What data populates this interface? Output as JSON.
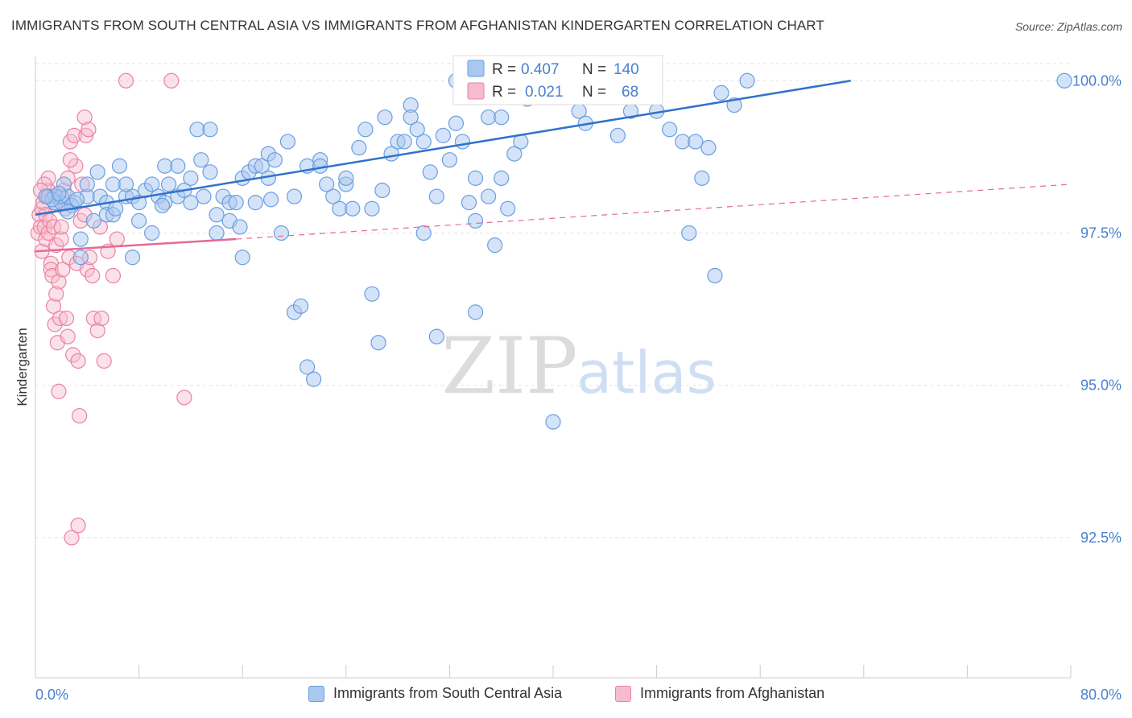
{
  "title": "IMMIGRANTS FROM SOUTH CENTRAL ASIA VS IMMIGRANTS FROM AFGHANISTAN KINDERGARTEN CORRELATION CHART",
  "source": "Source: ZipAtlas.com",
  "watermark": {
    "zip": "ZIP",
    "atlas": "atlas"
  },
  "colors": {
    "blue_fill": "#a9c8f0",
    "blue_stroke": "#6a9ee0",
    "blue_line": "#2f72cc",
    "pink_fill": "#f6bccd",
    "pink_stroke": "#eb82a4",
    "pink_line": "#e8679a",
    "axis_text": "#4a7fd0",
    "grid": "#e2e2e2"
  },
  "chart_data": {
    "type": "scatter",
    "xlabel": "",
    "ylabel": "Kindergarten",
    "xlim": [
      0,
      80
    ],
    "ylim": [
      90.2,
      100.4
    ],
    "x_tick_labels": [
      "0.0%",
      "80.0%"
    ],
    "y_ticks": [
      92.5,
      95.0,
      97.5,
      100.0
    ],
    "y_tick_labels": [
      "92.5%",
      "95.0%",
      "97.5%",
      "100.0%"
    ],
    "grid": "horizontal dashed",
    "legend_position": "top-center",
    "legend": [
      {
        "r_label": "R =",
        "r_value": "0.407",
        "n_label": "N =",
        "n_value": "140"
      },
      {
        "r_label": "R =",
        "r_value": "0.021",
        "n_label": "N =",
        "n_value": "68"
      }
    ],
    "series": [
      {
        "name": "Immigrants from South Central Asia",
        "color": "#a9c8f0",
        "trend": {
          "x0": 0,
          "y0": 97.8,
          "x1": 63,
          "y1": 100.0,
          "style": "solid"
        },
        "points": [
          [
            1,
            98.1
          ],
          [
            1.5,
            98.1
          ],
          [
            1.5,
            98.0
          ],
          [
            2,
            98.0
          ],
          [
            2,
            98.1
          ],
          [
            2.5,
            98.1
          ],
          [
            3,
            98.0
          ],
          [
            2.2,
            98.3
          ],
          [
            3.5,
            97.4
          ],
          [
            4,
            98.1
          ],
          [
            3.5,
            97.1
          ],
          [
            4,
            98.3
          ],
          [
            4.5,
            97.7
          ],
          [
            5,
            98.1
          ],
          [
            5.5,
            98.0
          ],
          [
            4.8,
            98.5
          ],
          [
            5.5,
            97.8
          ],
          [
            6,
            97.8
          ],
          [
            6,
            98.3
          ],
          [
            6.5,
            98.6
          ],
          [
            7,
            98.1
          ],
          [
            7.5,
            98.1
          ],
          [
            8,
            98.0
          ],
          [
            8,
            97.7
          ],
          [
            7.5,
            97.1
          ],
          [
            8.5,
            98.2
          ],
          [
            9,
            97.5
          ],
          [
            9,
            98.3
          ],
          [
            9.5,
            98.1
          ],
          [
            10,
            98.6
          ],
          [
            10,
            98.0
          ],
          [
            10.3,
            98.3
          ],
          [
            11,
            98.1
          ],
          [
            11.5,
            98.2
          ],
          [
            11,
            98.6
          ],
          [
            12,
            98.0
          ],
          [
            12,
            98.4
          ],
          [
            12.5,
            99.2
          ],
          [
            13,
            98.1
          ],
          [
            13.5,
            99.2
          ],
          [
            13.5,
            98.5
          ],
          [
            14,
            97.8
          ],
          [
            14,
            97.5
          ],
          [
            14.5,
            98.1
          ],
          [
            15,
            97.7
          ],
          [
            15,
            98.0
          ],
          [
            15.5,
            98.0
          ],
          [
            16,
            98.4
          ],
          [
            16,
            97.1
          ],
          [
            16.5,
            98.5
          ],
          [
            17,
            98.0
          ],
          [
            17,
            98.6
          ],
          [
            17.5,
            98.6
          ],
          [
            18,
            98.4
          ],
          [
            18,
            98.8
          ],
          [
            18.5,
            98.7
          ],
          [
            19,
            97.5
          ],
          [
            19.5,
            99.0
          ],
          [
            20,
            98.1
          ],
          [
            20,
            96.2
          ],
          [
            20.5,
            96.3
          ],
          [
            21,
            98.6
          ],
          [
            21,
            95.3
          ],
          [
            21.5,
            95.1
          ],
          [
            22,
            98.7
          ],
          [
            22,
            98.6
          ],
          [
            23,
            98.1
          ],
          [
            23.5,
            97.9
          ],
          [
            24,
            98.3
          ],
          [
            24,
            98.4
          ],
          [
            24.5,
            97.9
          ],
          [
            25,
            98.9
          ],
          [
            25.5,
            99.2
          ],
          [
            26,
            96.5
          ],
          [
            26,
            97.9
          ],
          [
            26.5,
            95.7
          ],
          [
            27,
            99.4
          ],
          [
            27.5,
            98.8
          ],
          [
            28,
            99.0
          ],
          [
            28.5,
            99.0
          ],
          [
            29,
            99.6
          ],
          [
            29,
            99.4
          ],
          [
            29.5,
            99.2
          ],
          [
            30,
            99.0
          ],
          [
            30,
            97.5
          ],
          [
            30.5,
            98.5
          ],
          [
            31,
            98.1
          ],
          [
            31.5,
            99.1
          ],
          [
            31,
            95.8
          ],
          [
            32,
            98.7
          ],
          [
            32.5,
            99.3
          ],
          [
            32.5,
            100.0
          ],
          [
            33,
            99.0
          ],
          [
            33.5,
            98.0
          ],
          [
            34,
            96.2
          ],
          [
            34,
            97.7
          ],
          [
            34,
            98.4
          ],
          [
            35,
            99.4
          ],
          [
            35,
            98.1
          ],
          [
            35.5,
            97.3
          ],
          [
            36,
            99.4
          ],
          [
            36,
            98.4
          ],
          [
            37,
            98.8
          ],
          [
            37.5,
            99.0
          ],
          [
            38,
            99.7
          ],
          [
            38.5,
            100.0
          ],
          [
            39,
            99.8
          ],
          [
            40,
            94.4
          ],
          [
            40.5,
            100.0
          ],
          [
            41,
            100.0
          ],
          [
            42,
            99.5
          ],
          [
            42.5,
            99.3
          ],
          [
            43,
            100.0
          ],
          [
            44,
            100.0
          ],
          [
            45,
            99.1
          ],
          [
            46,
            99.5
          ],
          [
            47,
            100.0
          ],
          [
            48,
            99.5
          ],
          [
            49,
            99.2
          ],
          [
            50,
            99.0
          ],
          [
            50.5,
            97.5
          ],
          [
            51,
            99.0
          ],
          [
            51.5,
            98.4
          ],
          [
            52,
            98.9
          ],
          [
            52.5,
            96.8
          ],
          [
            53,
            99.8
          ],
          [
            54,
            99.6
          ],
          [
            55,
            100.0
          ],
          [
            79.5,
            100.0
          ],
          [
            1.3,
            98.05
          ],
          [
            2.8,
            97.95
          ],
          [
            1.8,
            98.15
          ],
          [
            3.2,
            98.05
          ],
          [
            2.5,
            97.85
          ],
          [
            0.8,
            98.1
          ],
          [
            6.2,
            97.9
          ],
          [
            7,
            98.3
          ],
          [
            9.8,
            97.95
          ],
          [
            12.8,
            98.7
          ],
          [
            15.8,
            97.6
          ],
          [
            18.2,
            98.05
          ],
          [
            22.5,
            98.3
          ],
          [
            26.8,
            98.2
          ],
          [
            36.5,
            97.9
          ]
        ]
      },
      {
        "name": "Immigrants from Afghanistan",
        "color": "#f6bccd",
        "trend": {
          "x0": 0,
          "y0": 97.2,
          "x1": 15.5,
          "y1": 97.4,
          "style": "solid"
        },
        "trend_extension": {
          "x0": 15.5,
          "y0": 97.4,
          "x1": 80,
          "y1": 98.3,
          "style": "dashed"
        },
        "points": [
          [
            0.2,
            97.5
          ],
          [
            0.3,
            97.8
          ],
          [
            0.4,
            97.6
          ],
          [
            0.5,
            97.2
          ],
          [
            0.5,
            97.9
          ],
          [
            0.6,
            98.0
          ],
          [
            0.7,
            97.6
          ],
          [
            0.8,
            97.4
          ],
          [
            0.8,
            97.8
          ],
          [
            0.9,
            98.1
          ],
          [
            1,
            97.5
          ],
          [
            1,
            98.2
          ],
          [
            1.1,
            97.7
          ],
          [
            1.2,
            97.0
          ],
          [
            1.2,
            96.9
          ],
          [
            1.3,
            96.8
          ],
          [
            1.4,
            96.3
          ],
          [
            1.4,
            97.6
          ],
          [
            1.5,
            96.0
          ],
          [
            1.5,
            98.0
          ],
          [
            1.6,
            97.3
          ],
          [
            1.7,
            95.7
          ],
          [
            1.8,
            94.9
          ],
          [
            1.8,
            96.7
          ],
          [
            1.9,
            96.1
          ],
          [
            2,
            97.4
          ],
          [
            2.1,
            96.9
          ],
          [
            2.2,
            98.2
          ],
          [
            2.3,
            97.9
          ],
          [
            2.4,
            96.1
          ],
          [
            2.5,
            95.8
          ],
          [
            2.5,
            98.4
          ],
          [
            2.6,
            97.1
          ],
          [
            2.7,
            99.0
          ],
          [
            2.8,
            92.5
          ],
          [
            2.9,
            95.5
          ],
          [
            3,
            99.1
          ],
          [
            3.1,
            98.6
          ],
          [
            3.2,
            97.0
          ],
          [
            3.3,
            95.4
          ],
          [
            3.3,
            92.7
          ],
          [
            3.4,
            94.5
          ],
          [
            3.5,
            97.7
          ],
          [
            3.6,
            98.3
          ],
          [
            3.8,
            99.4
          ],
          [
            3.9,
            99.1
          ],
          [
            4,
            96.9
          ],
          [
            4.1,
            99.2
          ],
          [
            4.2,
            97.1
          ],
          [
            4.4,
            96.8
          ],
          [
            4.5,
            96.1
          ],
          [
            4.8,
            95.9
          ],
          [
            5,
            97.6
          ],
          [
            5.1,
            96.1
          ],
          [
            5.3,
            95.4
          ],
          [
            5.6,
            97.2
          ],
          [
            6,
            96.8
          ],
          [
            6.3,
            97.4
          ],
          [
            7,
            100.0
          ],
          [
            10.5,
            100.0
          ],
          [
            11.5,
            94.8
          ],
          [
            2,
            97.6
          ],
          [
            1,
            98.4
          ],
          [
            0.7,
            98.3
          ],
          [
            2.7,
            98.7
          ],
          [
            3.8,
            97.8
          ],
          [
            1.6,
            96.5
          ],
          [
            0.4,
            98.2
          ]
        ]
      }
    ]
  },
  "legend_bottom": [
    {
      "label": "Immigrants from South Central Asia"
    },
    {
      "label": "Immigrants from Afghanistan"
    }
  ]
}
